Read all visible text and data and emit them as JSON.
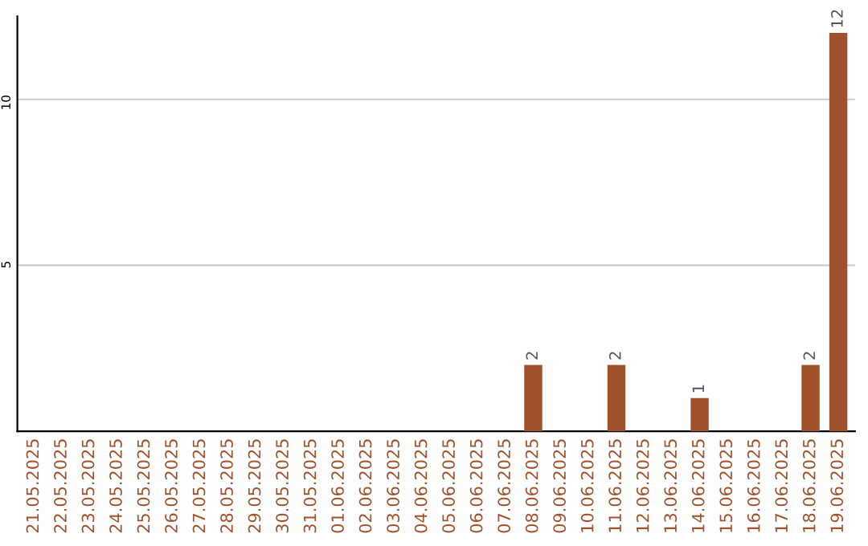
{
  "chart_data": {
    "type": "bar",
    "categories": [
      "21.05.2025",
      "22.05.2025",
      "23.05.2025",
      "24.05.2025",
      "25.05.2025",
      "26.05.2025",
      "27.05.2025",
      "28.05.2025",
      "29.05.2025",
      "30.05.2025",
      "31.05.2025",
      "01.06.2025",
      "02.06.2025",
      "03.06.2025",
      "04.06.2025",
      "05.06.2025",
      "06.06.2025",
      "07.06.2025",
      "08.06.2025",
      "09.06.2025",
      "10.06.2025",
      "11.06.2025",
      "12.06.2025",
      "13.06.2025",
      "14.06.2025",
      "15.06.2025",
      "16.06.2025",
      "17.06.2025",
      "18.06.2025",
      "19.06.2025"
    ],
    "values": [
      0,
      0,
      0,
      0,
      0,
      0,
      0,
      0,
      0,
      0,
      0,
      0,
      0,
      0,
      0,
      0,
      0,
      0,
      2,
      0,
      0,
      2,
      0,
      0,
      1,
      0,
      0,
      0,
      2,
      12
    ],
    "value_labels": [
      null,
      null,
      null,
      null,
      null,
      null,
      null,
      null,
      null,
      null,
      null,
      null,
      null,
      null,
      null,
      null,
      null,
      null,
      "2",
      null,
      null,
      "2",
      null,
      null,
      "1",
      null,
      null,
      null,
      "2",
      "12"
    ],
    "color": "#a0522d",
    "ylim": [
      0,
      12.5
    ],
    "yticks": [
      5,
      10
    ],
    "grid": "y"
  }
}
